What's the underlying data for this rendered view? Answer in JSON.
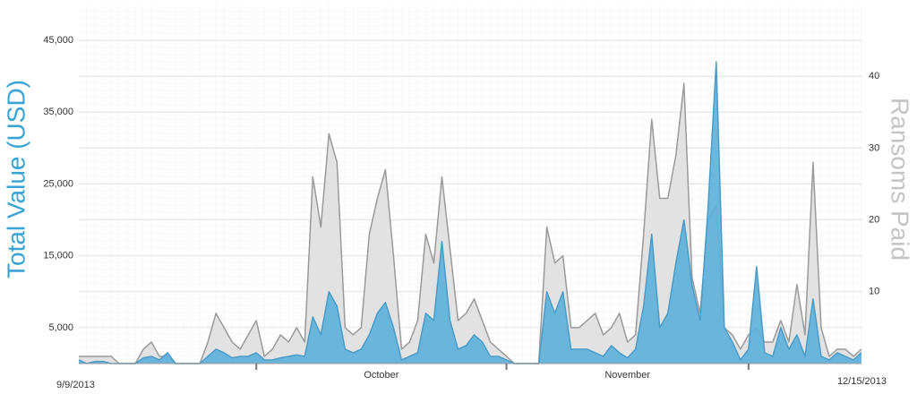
{
  "chart_data": {
    "type": "area",
    "y_title": "Total Value (USD)",
    "y2_title": "Ransoms Paid",
    "x": [
      0,
      1,
      2,
      3,
      4,
      5,
      6,
      7,
      8,
      9,
      10,
      11,
      12,
      13,
      14,
      15,
      16,
      17,
      18,
      19,
      20,
      21,
      22,
      23,
      24,
      25,
      26,
      27,
      28,
      29,
      30,
      31,
      32,
      33,
      34,
      35,
      36,
      37,
      38,
      39,
      40,
      41,
      42,
      43,
      44,
      45,
      46,
      47,
      48,
      49,
      50,
      51,
      52,
      53,
      54,
      55,
      56,
      57,
      58,
      59,
      60,
      61,
      62,
      63,
      64,
      65,
      66,
      67,
      68,
      69,
      70,
      71,
      72,
      73,
      74,
      75,
      76,
      77,
      78,
      79,
      80,
      81,
      82,
      83,
      84,
      85,
      86,
      87,
      88,
      89,
      90,
      91,
      92,
      93,
      94,
      95,
      96,
      97
    ],
    "xlim": [
      {
        "value": 0,
        "label": "9/9/2013"
      },
      {
        "value": 97,
        "label": "12/15/2013"
      }
    ],
    "month_ticks": [
      22,
      53,
      83
    ],
    "month_labels": [
      {
        "value": 37.5,
        "label": "October"
      },
      {
        "value": 68,
        "label": "November"
      }
    ],
    "ylim": [
      0,
      50000
    ],
    "yticks": [
      {
        "value": 5000,
        "label": "5,000"
      },
      {
        "value": 15000,
        "label": "15,000"
      },
      {
        "value": 25000,
        "label": "25,000"
      },
      {
        "value": 35000,
        "label": "35,000"
      },
      {
        "value": 45000,
        "label": "45,000"
      }
    ],
    "y2lim": [
      0,
      50
    ],
    "y2ticks": [
      10,
      20,
      30,
      40
    ],
    "grid": true,
    "series": [
      {
        "name": "Ransoms Paid",
        "axis": "y2",
        "color": "#9a9a9a",
        "fill": "#e2e2e2",
        "values": [
          1,
          1,
          1,
          1,
          1,
          0,
          0,
          0,
          2,
          3,
          1,
          1,
          0,
          0,
          0,
          0,
          3,
          7,
          5,
          3,
          2,
          4,
          6,
          1,
          2,
          4,
          3,
          5,
          3,
          26,
          19,
          32,
          28,
          5,
          4,
          5,
          18,
          23,
          27,
          15,
          2,
          3,
          6,
          18,
          14,
          26,
          16,
          6,
          7,
          9,
          6,
          3,
          2,
          1,
          0,
          0,
          0,
          0,
          19,
          14,
          15,
          5,
          5,
          6,
          7,
          4,
          5,
          7,
          3,
          4,
          18,
          34,
          23,
          23,
          29,
          39,
          12,
          7,
          20,
          22,
          5,
          4,
          2,
          4,
          5,
          3,
          3,
          6,
          3,
          11,
          4,
          28,
          5,
          1,
          2,
          2,
          1,
          2
        ]
      },
      {
        "name": "Total Value (USD)",
        "axis": "y",
        "color": "#4a9cc8",
        "fill": "#5fb1da",
        "values": [
          500,
          0,
          300,
          300,
          0,
          0,
          0,
          0,
          800,
          1000,
          500,
          1500,
          0,
          0,
          0,
          0,
          1000,
          2000,
          1500,
          800,
          1000,
          1000,
          1500,
          500,
          500,
          800,
          1000,
          1200,
          1000,
          6500,
          4000,
          10000,
          8000,
          2000,
          1500,
          2000,
          4000,
          7000,
          8500,
          5000,
          500,
          1000,
          1500,
          7000,
          6000,
          17000,
          6000,
          2000,
          2500,
          4000,
          3000,
          1000,
          1000,
          500,
          0,
          0,
          0,
          0,
          10000,
          7000,
          10000,
          2000,
          2000,
          2000,
          1500,
          1000,
          2500,
          1500,
          800,
          2000,
          8000,
          18000,
          5000,
          7000,
          14000,
          20000,
          11000,
          6000,
          22000,
          42000,
          5000,
          3000,
          500,
          2000,
          13500,
          1500,
          1000,
          5000,
          2000,
          4000,
          1000,
          9000,
          1000,
          500,
          1500,
          1000,
          500,
          1500
        ]
      }
    ]
  }
}
